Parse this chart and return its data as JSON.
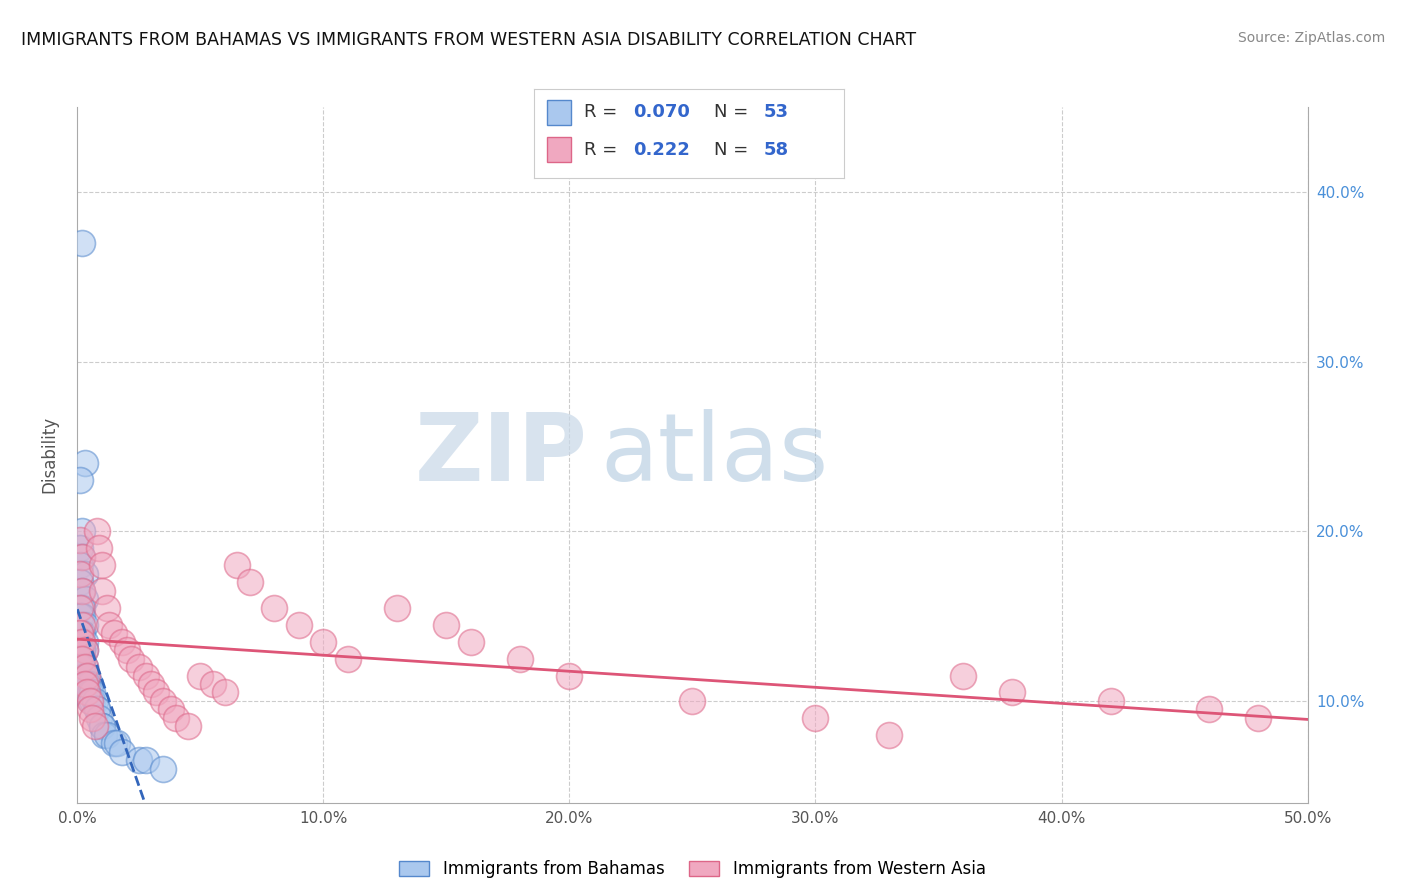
{
  "title": "IMMIGRANTS FROM BAHAMAS VS IMMIGRANTS FROM WESTERN ASIA DISABILITY CORRELATION CHART",
  "source": "Source: ZipAtlas.com",
  "ylabel": "Disability",
  "xlim": [
    0.0,
    0.5
  ],
  "ylim": [
    0.04,
    0.45
  ],
  "xticks": [
    0.0,
    0.1,
    0.2,
    0.3,
    0.4,
    0.5
  ],
  "xtick_labels": [
    "0.0%",
    "10.0%",
    "20.0%",
    "30.0%",
    "40.0%",
    "50.0%"
  ],
  "yticks_right": [
    0.1,
    0.2,
    0.3,
    0.4
  ],
  "ytick_right_labels": [
    "10.0%",
    "20.0%",
    "30.0%",
    "40.0%"
  ],
  "legend1_r": "0.070",
  "legend1_n": "53",
  "legend2_r": "0.222",
  "legend2_n": "58",
  "legend1_label": "Immigrants from Bahamas",
  "legend2_label": "Immigrants from Western Asia",
  "color_blue": "#aac8ee",
  "color_blue_edge": "#5588cc",
  "color_blue_line": "#3366bb",
  "color_pink": "#f0a8c0",
  "color_pink_edge": "#dd6688",
  "color_pink_line": "#dd5577",
  "watermark_zip": "ZIP",
  "watermark_atlas": "atlas",
  "bahamas_x": [
    0.002,
    0.003,
    0.001,
    0.002,
    0.001,
    0.002,
    0.001,
    0.003,
    0.001,
    0.002,
    0.003,
    0.002,
    0.001,
    0.002,
    0.003,
    0.002,
    0.001,
    0.002,
    0.003,
    0.002,
    0.003,
    0.002,
    0.001,
    0.002,
    0.001,
    0.003,
    0.002,
    0.001,
    0.002,
    0.003,
    0.004,
    0.003,
    0.004,
    0.005,
    0.004,
    0.005,
    0.006,
    0.005,
    0.006,
    0.007,
    0.008,
    0.008,
    0.009,
    0.01,
    0.01,
    0.011,
    0.012,
    0.015,
    0.016,
    0.018,
    0.025,
    0.028,
    0.035
  ],
  "bahamas_y": [
    0.37,
    0.24,
    0.23,
    0.2,
    0.19,
    0.185,
    0.18,
    0.175,
    0.17,
    0.165,
    0.16,
    0.155,
    0.15,
    0.15,
    0.145,
    0.14,
    0.14,
    0.135,
    0.135,
    0.13,
    0.13,
    0.13,
    0.13,
    0.125,
    0.125,
    0.12,
    0.12,
    0.12,
    0.12,
    0.115,
    0.115,
    0.11,
    0.11,
    0.11,
    0.11,
    0.105,
    0.105,
    0.1,
    0.1,
    0.1,
    0.095,
    0.095,
    0.09,
    0.085,
    0.085,
    0.08,
    0.08,
    0.075,
    0.075,
    0.07,
    0.065,
    0.065,
    0.06
  ],
  "western_asia_x": [
    0.001,
    0.002,
    0.001,
    0.002,
    0.001,
    0.002,
    0.001,
    0.002,
    0.003,
    0.002,
    0.003,
    0.004,
    0.003,
    0.004,
    0.005,
    0.005,
    0.006,
    0.007,
    0.008,
    0.009,
    0.01,
    0.01,
    0.012,
    0.013,
    0.015,
    0.018,
    0.02,
    0.022,
    0.025,
    0.028,
    0.03,
    0.032,
    0.035,
    0.038,
    0.04,
    0.045,
    0.05,
    0.055,
    0.06,
    0.065,
    0.07,
    0.08,
    0.09,
    0.1,
    0.11,
    0.13,
    0.15,
    0.16,
    0.18,
    0.2,
    0.25,
    0.3,
    0.33,
    0.36,
    0.38,
    0.42,
    0.46,
    0.48
  ],
  "western_asia_y": [
    0.195,
    0.185,
    0.175,
    0.165,
    0.155,
    0.145,
    0.14,
    0.135,
    0.13,
    0.125,
    0.12,
    0.115,
    0.11,
    0.105,
    0.1,
    0.095,
    0.09,
    0.085,
    0.2,
    0.19,
    0.18,
    0.165,
    0.155,
    0.145,
    0.14,
    0.135,
    0.13,
    0.125,
    0.12,
    0.115,
    0.11,
    0.105,
    0.1,
    0.095,
    0.09,
    0.085,
    0.115,
    0.11,
    0.105,
    0.18,
    0.17,
    0.155,
    0.145,
    0.135,
    0.125,
    0.155,
    0.145,
    0.135,
    0.125,
    0.115,
    0.1,
    0.09,
    0.08,
    0.115,
    0.105,
    0.1,
    0.095,
    0.09
  ]
}
